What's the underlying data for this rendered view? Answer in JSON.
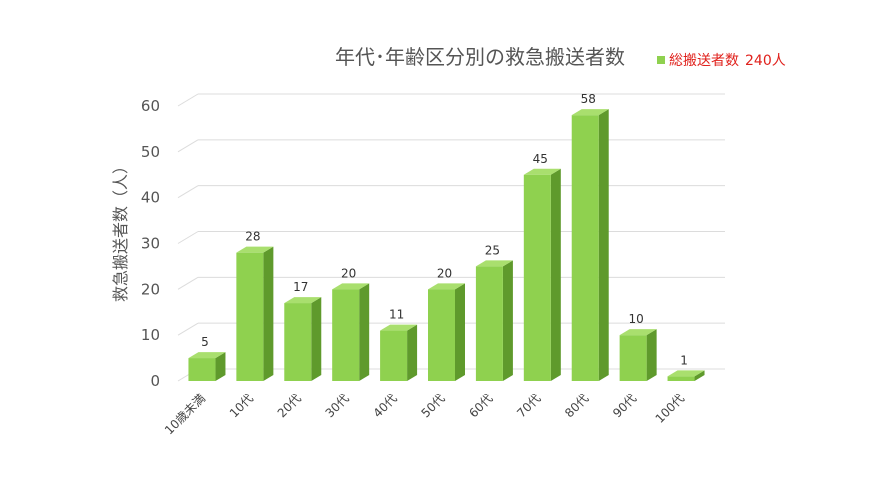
{
  "chart_data": {
    "type": "bar",
    "title": "年代･年齢区分別の救急搬送者数",
    "ylabel": "救急搬送者数（人）",
    "xlabel": "",
    "categories": [
      "10歳未満",
      "10代",
      "20代",
      "30代",
      "40代",
      "50代",
      "60代",
      "70代",
      "80代",
      "90代",
      "100代"
    ],
    "series": [
      {
        "name": "総搬送者数",
        "values": [
          5,
          28,
          17,
          20,
          11,
          20,
          25,
          45,
          58,
          10,
          1
        ]
      }
    ],
    "ylim": [
      0,
      60
    ],
    "yticks": [
      0,
      10,
      20,
      30,
      40,
      50,
      60
    ],
    "grid": true,
    "legend_position": "top-right",
    "legend_total": "240人",
    "colors": {
      "bar_front": "#8fd14f",
      "bar_side": "#5f9a2c",
      "bar_top": "#a9df6e",
      "legend_text": "#e0201b",
      "grid": "#dcdcdc"
    }
  }
}
